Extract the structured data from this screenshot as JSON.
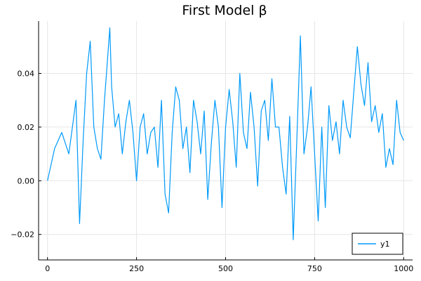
{
  "chart_data": {
    "type": "line",
    "title": "First Model β",
    "xlabel": "",
    "ylabel": "",
    "xlim": [
      -25,
      1025
    ],
    "ylim": [
      -0.0295,
      0.0595
    ],
    "xticks": [
      {
        "value": 0,
        "label": "0"
      },
      {
        "value": 250,
        "label": "250"
      },
      {
        "value": 500,
        "label": "500"
      },
      {
        "value": 750,
        "label": "750"
      },
      {
        "value": 1000,
        "label": "1000"
      }
    ],
    "yticks": [
      {
        "value": -0.02,
        "label": "−0.02"
      },
      {
        "value": 0.0,
        "label": "0.00"
      },
      {
        "value": 0.02,
        "label": "0.02"
      },
      {
        "value": 0.04,
        "label": "0.04"
      }
    ],
    "grid": true,
    "legend": {
      "position": "bottom-right",
      "entries": [
        "y1"
      ]
    },
    "series": [
      {
        "name": "y1",
        "color": "#009af9",
        "x": [
          0,
          20,
          40,
          60,
          80,
          90,
          100,
          110,
          120,
          130,
          140,
          150,
          160,
          170,
          175,
          180,
          190,
          200,
          210,
          220,
          230,
          240,
          250,
          260,
          270,
          280,
          290,
          300,
          310,
          320,
          330,
          340,
          350,
          360,
          370,
          380,
          390,
          400,
          410,
          420,
          430,
          440,
          450,
          460,
          470,
          480,
          490,
          500,
          510,
          520,
          530,
          540,
          550,
          560,
          570,
          580,
          590,
          600,
          610,
          620,
          630,
          640,
          650,
          660,
          670,
          680,
          690,
          700,
          710,
          720,
          730,
          740,
          750,
          760,
          770,
          780,
          790,
          800,
          810,
          820,
          830,
          840,
          850,
          860,
          870,
          880,
          890,
          900,
          910,
          920,
          930,
          940,
          950,
          960,
          970,
          980,
          990,
          1000
        ],
        "y": [
          0.0,
          0.012,
          0.018,
          0.01,
          0.03,
          -0.016,
          0.015,
          0.04,
          0.052,
          0.02,
          0.012,
          0.008,
          0.03,
          0.048,
          0.057,
          0.035,
          0.02,
          0.025,
          0.01,
          0.022,
          0.03,
          0.018,
          0.0,
          0.02,
          0.025,
          0.01,
          0.018,
          0.02,
          0.005,
          0.03,
          -0.005,
          -0.012,
          0.018,
          0.035,
          0.03,
          0.012,
          0.02,
          0.003,
          0.03,
          0.022,
          0.01,
          0.026,
          -0.007,
          0.014,
          0.03,
          0.02,
          -0.01,
          0.02,
          0.034,
          0.022,
          0.005,
          0.04,
          0.018,
          0.012,
          0.033,
          0.02,
          -0.002,
          0.026,
          0.03,
          0.015,
          0.038,
          0.02,
          0.02,
          0.005,
          -0.005,
          0.024,
          -0.022,
          0.015,
          0.054,
          0.01,
          0.02,
          0.035,
          0.01,
          -0.015,
          0.02,
          -0.01,
          0.028,
          0.015,
          0.022,
          0.01,
          0.03,
          0.02,
          0.016,
          0.033,
          0.05,
          0.036,
          0.028,
          0.044,
          0.022,
          0.028,
          0.018,
          0.025,
          0.005,
          0.012,
          0.006,
          0.03,
          0.018,
          0.015
        ]
      }
    ]
  }
}
